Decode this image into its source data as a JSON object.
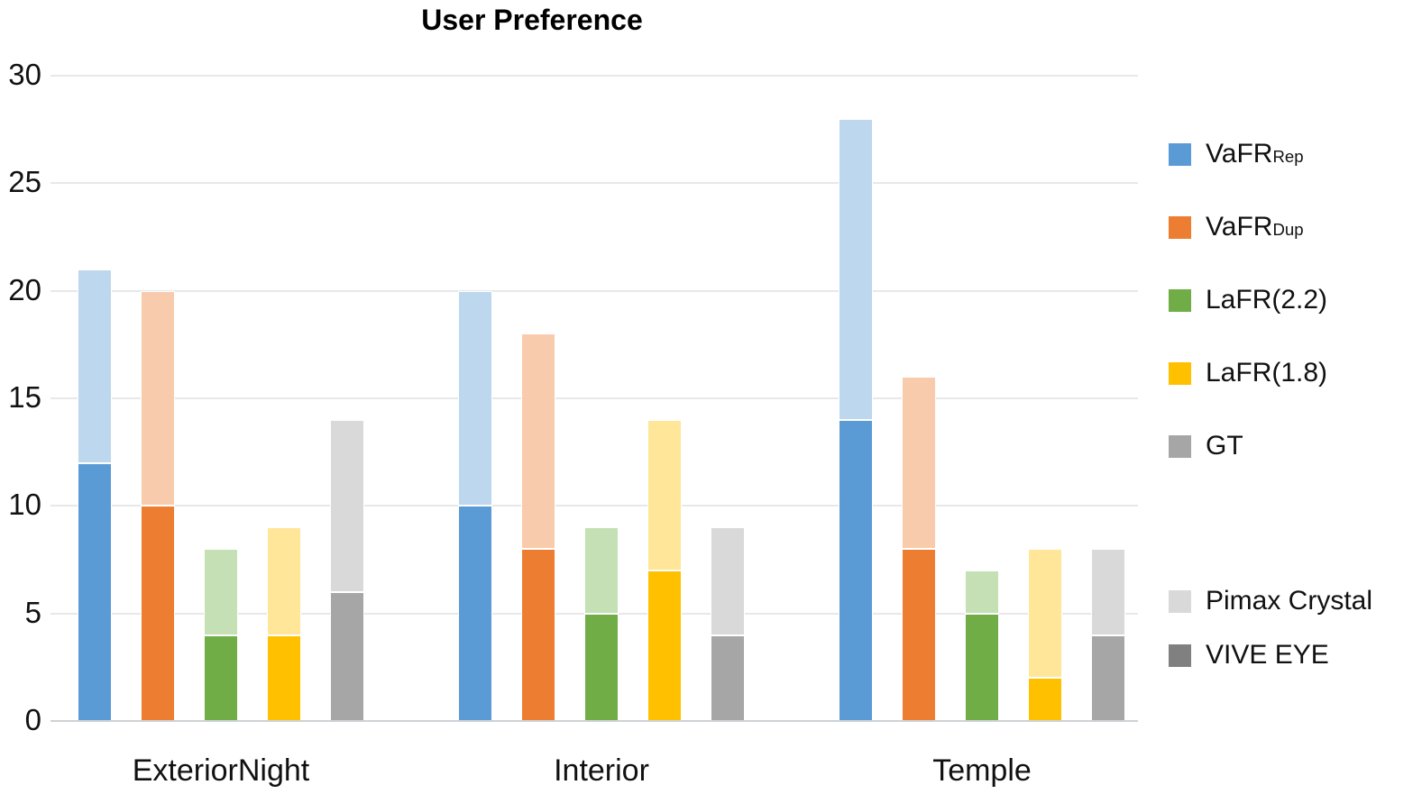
{
  "chart_data": {
    "type": "bar",
    "stacked": true,
    "title": "User Preference",
    "categories": [
      "ExteriorNight",
      "Interior",
      "Temple"
    ],
    "y_axis": {
      "min": 0,
      "max": 30,
      "tick_interval": 5,
      "ticks": [
        0,
        5,
        10,
        15,
        20,
        25,
        30
      ]
    },
    "grid": "horizontal",
    "legend_position": "right",
    "stack_note": "each bar = solid bottom segment (VIVE EYE) + light top segment (Pimax Crystal)",
    "series": [
      {
        "name": "VaFR_Rep",
        "legend_label": "VaFR",
        "legend_subscript": "Rep",
        "color_solid": "#5B9BD5",
        "color_light": "#BDD7EE",
        "values_vive_eye": [
          12,
          10,
          14
        ],
        "values_pimax_crystal": [
          9,
          10,
          14
        ],
        "totals": [
          21,
          20,
          28
        ]
      },
      {
        "name": "VaFR_Dup",
        "legend_label": "VaFR",
        "legend_subscript": "Dup",
        "color_solid": "#ED7D31",
        "color_light": "#F8CBAD",
        "values_vive_eye": [
          10,
          8,
          8
        ],
        "values_pimax_crystal": [
          10,
          10,
          8
        ],
        "totals": [
          20,
          18,
          16
        ]
      },
      {
        "name": "LaFR(2.2)",
        "legend_label": "LaFR(2.2)",
        "legend_subscript": "",
        "color_solid": "#70AD47",
        "color_light": "#C5E0B4",
        "values_vive_eye": [
          4,
          5,
          5
        ],
        "values_pimax_crystal": [
          4,
          4,
          2
        ],
        "totals": [
          8,
          9,
          7
        ]
      },
      {
        "name": "LaFR(1.8)",
        "legend_label": "LaFR(1.8)",
        "legend_subscript": "",
        "color_solid": "#FFC000",
        "color_light": "#FFE699",
        "values_vive_eye": [
          4,
          7,
          2
        ],
        "values_pimax_crystal": [
          5,
          7,
          6
        ],
        "totals": [
          9,
          14,
          8
        ]
      },
      {
        "name": "GT",
        "legend_label": "GT",
        "legend_subscript": "",
        "color_solid": "#A6A6A6",
        "color_light": "#D9D9D9",
        "values_vive_eye": [
          6,
          4,
          4
        ],
        "values_pimax_crystal": [
          8,
          5,
          4
        ],
        "totals": [
          14,
          9,
          8
        ]
      }
    ],
    "stack_legend": [
      {
        "label": "Pimax Crystal",
        "color": "#D9D9D9",
        "segment": "top-light"
      },
      {
        "label": "VIVE EYE",
        "color": "#808080",
        "segment": "bottom-solid"
      }
    ]
  }
}
